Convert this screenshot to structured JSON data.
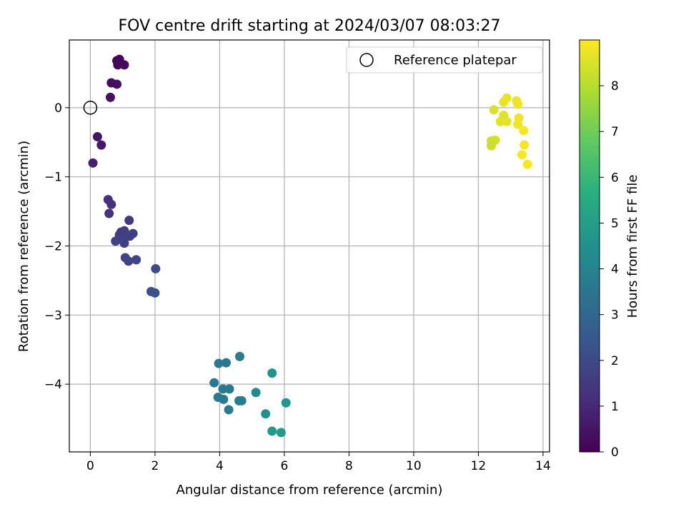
{
  "chart_data": {
    "type": "scatter",
    "title": "FOV centre drift starting at 2024/03/07 08:03:27",
    "xlabel": "Angular distance from reference (arcmin)",
    "ylabel": "Rotation from reference (arcmin)",
    "xlim": [
      -0.65,
      14.2
    ],
    "ylim": [
      -4.98,
      0.98
    ],
    "xticks": [
      0,
      2,
      4,
      6,
      8,
      10,
      12,
      14
    ],
    "yticks": [
      0,
      -1,
      -2,
      -3,
      -4
    ],
    "grid": true,
    "legend": {
      "placement": "top-right",
      "entries": [
        "Reference platepar"
      ]
    },
    "reference_point": {
      "x": 0,
      "y": 0
    },
    "colorbar": {
      "label": "Hours from first FF file",
      "colormap": "viridis",
      "range": [
        0,
        9.0
      ],
      "ticks": [
        0,
        1,
        2,
        3,
        4,
        5,
        6,
        7,
        8
      ]
    },
    "points": [
      {
        "x": 0.82,
        "y": 0.68,
        "t": 0.1
      },
      {
        "x": 0.9,
        "y": 0.7,
        "t": 0.15
      },
      {
        "x": 0.85,
        "y": 0.62,
        "t": 0.18
      },
      {
        "x": 1.05,
        "y": 0.62,
        "t": 0.22
      },
      {
        "x": 0.65,
        "y": 0.36,
        "t": 0.3
      },
      {
        "x": 0.82,
        "y": 0.34,
        "t": 0.35
      },
      {
        "x": 0.62,
        "y": 0.15,
        "t": 0.4
      },
      {
        "x": 0.22,
        "y": -0.42,
        "t": 0.55
      },
      {
        "x": 0.34,
        "y": -0.54,
        "t": 0.6
      },
      {
        "x": 0.08,
        "y": -0.8,
        "t": 0.8
      },
      {
        "x": 0.55,
        "y": -1.33,
        "t": 1.2
      },
      {
        "x": 0.65,
        "y": -1.4,
        "t": 1.25
      },
      {
        "x": 0.58,
        "y": -1.53,
        "t": 1.3
      },
      {
        "x": 1.2,
        "y": -1.63,
        "t": 1.5
      },
      {
        "x": 0.95,
        "y": -1.8,
        "t": 1.55
      },
      {
        "x": 1.05,
        "y": -1.78,
        "t": 1.6
      },
      {
        "x": 0.9,
        "y": -1.84,
        "t": 1.58
      },
      {
        "x": 1.1,
        "y": -1.85,
        "t": 1.62
      },
      {
        "x": 1.32,
        "y": -1.82,
        "t": 1.65
      },
      {
        "x": 1.22,
        "y": -1.86,
        "t": 1.67
      },
      {
        "x": 1.0,
        "y": -1.9,
        "t": 1.7
      },
      {
        "x": 0.78,
        "y": -1.93,
        "t": 1.72
      },
      {
        "x": 1.05,
        "y": -1.96,
        "t": 1.74
      },
      {
        "x": 1.08,
        "y": -2.17,
        "t": 1.8
      },
      {
        "x": 1.18,
        "y": -2.22,
        "t": 1.82
      },
      {
        "x": 1.42,
        "y": -2.2,
        "t": 1.85
      },
      {
        "x": 2.02,
        "y": -2.33,
        "t": 2.05
      },
      {
        "x": 1.88,
        "y": -2.66,
        "t": 2.15
      },
      {
        "x": 2.0,
        "y": -2.68,
        "t": 2.18
      },
      {
        "x": 4.62,
        "y": -3.6,
        "t": 3.7
      },
      {
        "x": 4.2,
        "y": -3.69,
        "t": 3.6
      },
      {
        "x": 3.97,
        "y": -3.7,
        "t": 3.58
      },
      {
        "x": 5.62,
        "y": -3.84,
        "t": 4.6
      },
      {
        "x": 3.83,
        "y": -3.98,
        "t": 3.55
      },
      {
        "x": 4.1,
        "y": -4.07,
        "t": 3.65
      },
      {
        "x": 4.3,
        "y": -4.07,
        "t": 3.68
      },
      {
        "x": 5.12,
        "y": -4.12,
        "t": 4.3
      },
      {
        "x": 3.95,
        "y": -4.19,
        "t": 3.62
      },
      {
        "x": 4.12,
        "y": -4.22,
        "t": 3.66
      },
      {
        "x": 4.6,
        "y": -4.24,
        "t": 3.8
      },
      {
        "x": 4.68,
        "y": -4.24,
        "t": 3.82
      },
      {
        "x": 6.05,
        "y": -4.27,
        "t": 4.7
      },
      {
        "x": 4.28,
        "y": -4.37,
        "t": 3.72
      },
      {
        "x": 5.42,
        "y": -4.43,
        "t": 4.5
      },
      {
        "x": 5.62,
        "y": -4.68,
        "t": 4.8
      },
      {
        "x": 5.9,
        "y": -4.7,
        "t": 4.9
      },
      {
        "x": 12.88,
        "y": 0.14,
        "t": 8.7
      },
      {
        "x": 13.18,
        "y": 0.1,
        "t": 8.75
      },
      {
        "x": 12.78,
        "y": 0.08,
        "t": 8.72
      },
      {
        "x": 13.22,
        "y": 0.05,
        "t": 8.78
      },
      {
        "x": 12.48,
        "y": -0.03,
        "t": 8.5
      },
      {
        "x": 12.78,
        "y": -0.11,
        "t": 8.6
      },
      {
        "x": 13.25,
        "y": -0.15,
        "t": 8.8
      },
      {
        "x": 12.68,
        "y": -0.2,
        "t": 8.62
      },
      {
        "x": 12.88,
        "y": -0.2,
        "t": 8.65
      },
      {
        "x": 13.22,
        "y": -0.24,
        "t": 8.82
      },
      {
        "x": 13.4,
        "y": -0.33,
        "t": 8.85
      },
      {
        "x": 12.52,
        "y": -0.47,
        "t": 8.4
      },
      {
        "x": 12.4,
        "y": -0.48,
        "t": 8.35
      },
      {
        "x": 12.4,
        "y": -0.55,
        "t": 8.3
      },
      {
        "x": 13.42,
        "y": -0.54,
        "t": 8.88
      },
      {
        "x": 13.35,
        "y": -0.68,
        "t": 8.9
      },
      {
        "x": 13.52,
        "y": -0.82,
        "t": 8.95
      }
    ]
  }
}
